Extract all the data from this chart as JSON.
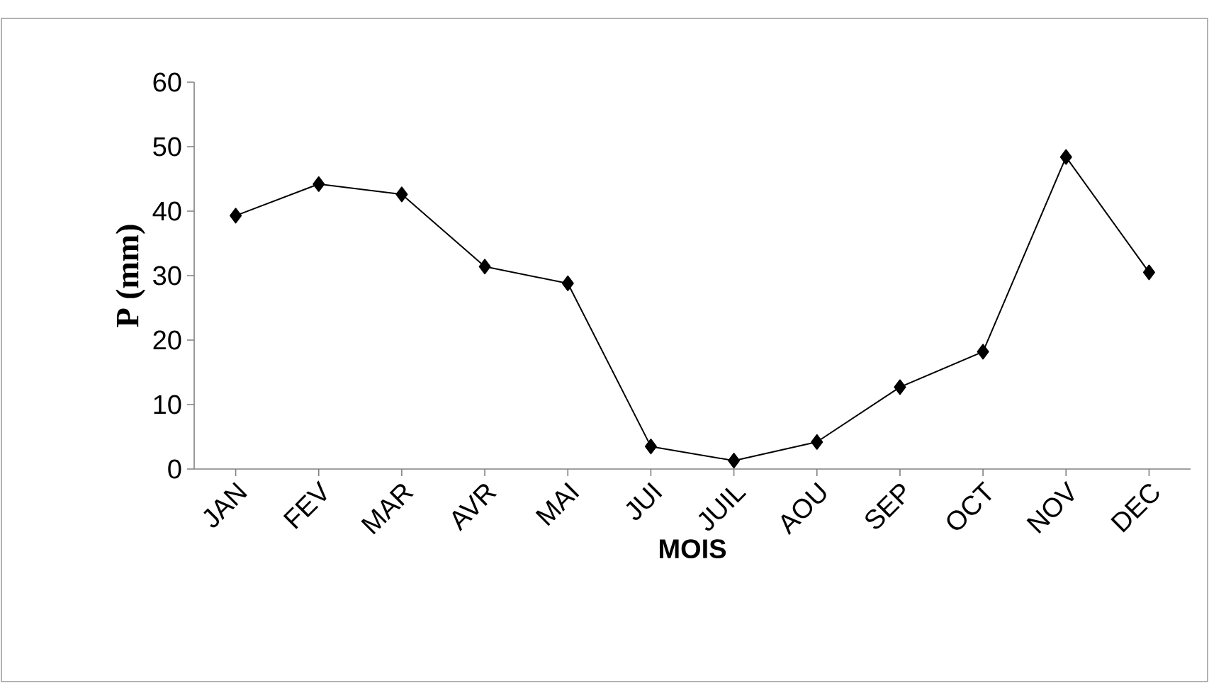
{
  "chart_data": {
    "type": "line",
    "xlabel": "MOIS",
    "ylabel": "P (mm)",
    "categories": [
      "JAN",
      "FEV",
      "MAR",
      "AVR",
      "MAI",
      "JUI",
      "JUIL",
      "AOU",
      "SEP",
      "OCT",
      "NOV",
      "DEC"
    ],
    "values": [
      39.3,
      44.2,
      42.6,
      31.4,
      28.8,
      3.5,
      1.3,
      4.2,
      12.7,
      18.2,
      48.4,
      30.5
    ],
    "color": "#000000",
    "marker": "diamond",
    "line_style": "solid",
    "ylim": [
      0,
      60
    ],
    "yticks": [
      0,
      10,
      20,
      30,
      40,
      50,
      60
    ],
    "grid": false
  }
}
